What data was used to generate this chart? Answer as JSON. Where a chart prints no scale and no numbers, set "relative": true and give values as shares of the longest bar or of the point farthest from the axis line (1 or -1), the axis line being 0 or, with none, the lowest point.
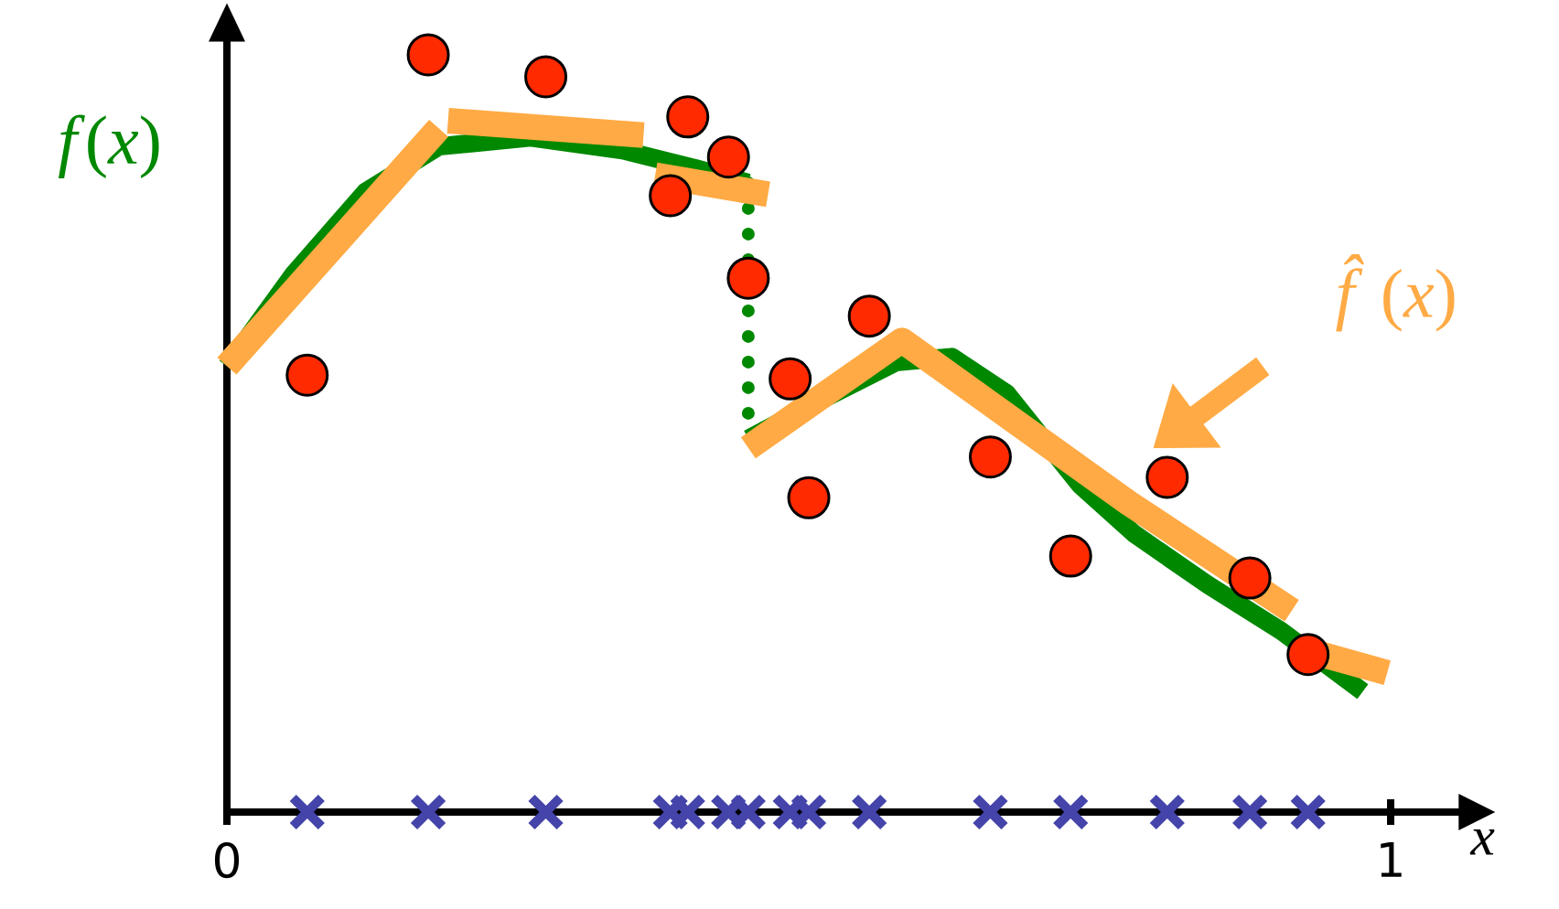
{
  "chart_data": {
    "type": "line",
    "relative": true,
    "xlabel": "x",
    "xlim": [
      0,
      1.06
    ],
    "xticks": [
      0,
      1
    ],
    "grid": false,
    "series": [
      {
        "name": "*f*(*x*)",
        "color": "#008800",
        "line_style": "solid",
        "marker": "none",
        "x": [
          0,
          0.057,
          0.119,
          0.182,
          0.261,
          0.34,
          0.403,
          0.448
        ],
        "values": [
          0.589,
          0.71,
          0.819,
          0.879,
          0.891,
          0.874,
          0.85,
          0.831
        ]
      },
      {
        "color": "#008800",
        "line_style": "dotted",
        "marker": "none",
        "x": [
          0.448,
          0.448
        ],
        "values": [
          0.831,
          0.493
        ]
      },
      {
        "color": "#008800",
        "line_style": "solid",
        "marker": "none",
        "x": [
          0.448,
          0.513,
          0.575,
          0.623,
          0.67,
          0.733,
          0.78,
          0.843,
          0.906,
          0.976
        ],
        "values": [
          0.493,
          0.546,
          0.594,
          0.601,
          0.553,
          0.432,
          0.367,
          0.3,
          0.239,
          0.159
        ]
      },
      {
        "name": "*f̂*(*x*)",
        "color": "#ffaa44",
        "line_style": "solid",
        "marker": "none",
        "x": [
          0,
          0.182,
          null,
          0.19,
          0.358,
          null,
          0.368,
          0.465,
          null,
          0.448,
          0.58,
          0.775,
          0.915,
          null,
          0.929,
          0.997
        ],
        "values": [
          0.589,
          0.903,
          null,
          0.913,
          0.894,
          null,
          0.841,
          0.816,
          null,
          0.481,
          0.623,
          0.408,
          0.266,
          null,
          0.213,
          0.184
        ]
      },
      {
        "type": "scatter",
        "color": "#ff2a00",
        "marker": "circle",
        "x": [
          0.069,
          0.173,
          0.274,
          0.396,
          0.381,
          0.431,
          0.448,
          0.484,
          0.5,
          0.552,
          0.656,
          0.725,
          0.808,
          0.879,
          0.929
        ],
        "values": [
          0.577,
          1.0,
          0.971,
          0.918,
          0.814,
          0.865,
          0.705,
          0.572,
          0.415,
          0.655,
          0.469,
          0.338,
          0.442,
          0.309,
          0.208
        ]
      },
      {
        "type": "scatter",
        "color": "#4444aa",
        "marker": "cross",
        "x": [
          0.069,
          0.173,
          0.274,
          0.381,
          0.396,
          0.431,
          0.448,
          0.484,
          0.5,
          0.552,
          0.656,
          0.725,
          0.808,
          0.879,
          0.929
        ],
        "values": [
          0,
          0,
          0,
          0,
          0,
          0,
          0,
          0,
          0,
          0,
          0,
          0,
          0,
          0,
          0
        ]
      }
    ]
  }
}
